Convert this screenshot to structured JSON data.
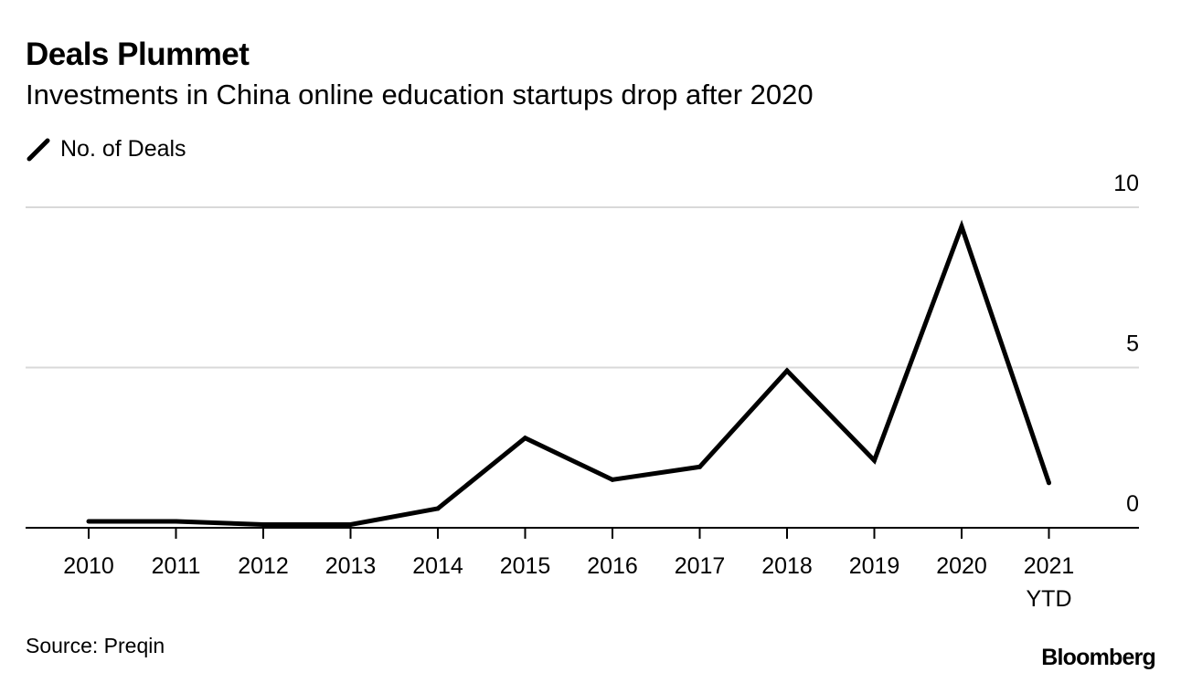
{
  "title": "Deals Plummet",
  "subtitle": "Investments in China online education startups drop after 2020",
  "legend": {
    "label": "No. of Deals",
    "icon": "line-swatch-icon"
  },
  "source": "Source: Preqin",
  "brand": "Bloomberg",
  "colors": {
    "line": "#000000",
    "grid": "#d9d9d9",
    "baseline": "#000000",
    "text": "#000000"
  },
  "chart_data": {
    "type": "line",
    "title": "Deals Plummet",
    "subtitle": "Investments in China online education startups drop after 2020",
    "xlabel": "",
    "ylabel": "",
    "categories": [
      "2010",
      "2011",
      "2012",
      "2013",
      "2014",
      "2015",
      "2016",
      "2017",
      "2018",
      "2019",
      "2020",
      "2021\nYTD"
    ],
    "series": [
      {
        "name": "No. of Deals",
        "values": [
          0.2,
          0.2,
          0.1,
          0.1,
          0.6,
          2.8,
          1.5,
          1.9,
          4.9,
          2.1,
          9.4,
          1.4
        ]
      }
    ],
    "ylim": [
      0,
      10
    ],
    "yticks": [
      0,
      5,
      10
    ],
    "ytick_labels": [
      "0",
      "5",
      "10"
    ],
    "y_axis_side": "right",
    "grid": true,
    "legend_position": "top-left"
  }
}
